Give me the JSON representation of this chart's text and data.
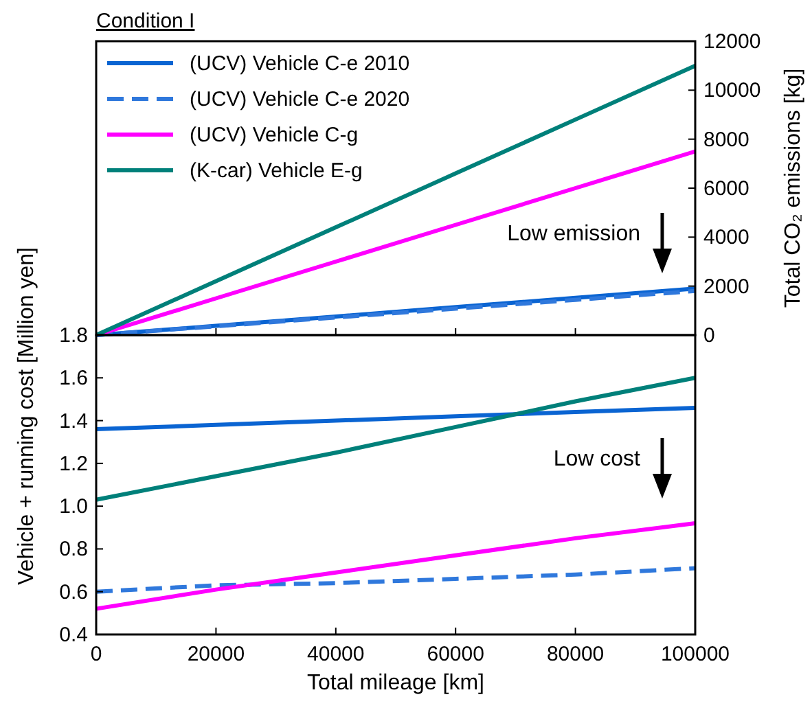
{
  "chart_data": [
    {
      "type": "line",
      "title": "Condition I",
      "y2label": "Total CO₂ emissions [kg]",
      "x": [
        0,
        20000,
        40000,
        60000,
        80000,
        100000
      ],
      "xlim": [
        0,
        100000
      ],
      "xticks": [
        0,
        20000,
        40000,
        60000,
        80000,
        100000
      ],
      "y2lim": [
        0,
        12000
      ],
      "y2ticks": [
        0,
        2000,
        4000,
        6000,
        8000,
        10000,
        12000
      ],
      "tick_labels": "y",
      "legend": "top left",
      "annotations": [
        "Low emission"
      ],
      "series": [
        {
          "name": "(UCV) Vehicle C-e 2010",
          "color": "#0a64d2",
          "axis": "y2",
          "values": [
            0,
            380,
            760,
            1140,
            1520,
            1900
          ]
        },
        {
          "name": "(UCV) Vehicle C-e 2020",
          "color": "#2f78dc",
          "axis": "y2",
          "line_style": "dashed",
          "values": [
            0,
            360,
            720,
            1080,
            1440,
            1800
          ]
        },
        {
          "name": "(UCV) Vehicle C-g",
          "color": "#ff00ff",
          "axis": "y2",
          "values": [
            0,
            1500,
            3000,
            4500,
            6000,
            7500
          ]
        },
        {
          "name": "(K-car) Vehicle E-g",
          "color": "#00807a",
          "axis": "y2",
          "values": [
            0,
            2200,
            4400,
            6600,
            8800,
            11000
          ]
        }
      ]
    },
    {
      "type": "line",
      "xlabel": "Total mileage [km]",
      "ylabel": "Vehicle + running cost [Million yen]",
      "x": [
        0,
        20000,
        40000,
        60000,
        80000,
        100000
      ],
      "xlim": [
        0,
        100000
      ],
      "xticks": [
        0,
        20000,
        40000,
        60000,
        80000,
        100000
      ],
      "ylim": [
        0.4,
        1.8
      ],
      "yticks": [
        {
          "value": 0.4,
          "label": "0.4"
        },
        {
          "value": 0.6,
          "label": "0.6"
        },
        {
          "value": 0.8,
          "label": "0.8"
        },
        {
          "value": 1.0,
          "label": "1.0"
        },
        {
          "value": 1.2,
          "label": "1.2"
        },
        {
          "value": 1.4,
          "label": "1.4"
        },
        {
          "value": 1.6,
          "label": "1.6"
        },
        {
          "value": 1.8,
          "label": "1.8"
        }
      ],
      "annotations": [
        "Low cost"
      ],
      "series": [
        {
          "color": "#0a64d2",
          "values": [
            1.36,
            1.38,
            1.4,
            1.42,
            1.44,
            1.46
          ]
        },
        {
          "color": "#2f78dc",
          "line_style": "dashed",
          "values": [
            0.6,
            0.63,
            0.64,
            0.66,
            0.68,
            0.71
          ]
        },
        {
          "color": "#ff00ff",
          "values": [
            0.52,
            0.61,
            0.69,
            0.77,
            0.85,
            0.92
          ]
        },
        {
          "color": "#00807a",
          "values": [
            1.03,
            1.14,
            1.25,
            1.37,
            1.49,
            1.6
          ]
        }
      ]
    }
  ]
}
